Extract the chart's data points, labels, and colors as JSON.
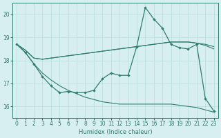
{
  "x": [
    0,
    1,
    2,
    3,
    4,
    5,
    6,
    7,
    8,
    9,
    10,
    11,
    12,
    13,
    14,
    15,
    16,
    17,
    18,
    19,
    20,
    21,
    22,
    23
  ],
  "y_jagged": [
    18.7,
    18.35,
    17.85,
    17.3,
    16.9,
    16.6,
    16.65,
    16.6,
    16.6,
    16.7,
    17.2,
    17.45,
    17.35,
    17.35,
    18.6,
    20.3,
    19.8,
    19.4,
    18.7,
    18.55,
    18.5,
    18.7,
    16.35,
    15.8
  ],
  "y_upper": [
    18.7,
    18.45,
    18.1,
    18.05,
    18.1,
    18.15,
    18.2,
    18.25,
    18.3,
    18.35,
    18.4,
    18.45,
    18.5,
    18.55,
    18.6,
    18.65,
    18.7,
    18.75,
    18.8,
    18.8,
    18.8,
    18.75,
    18.65,
    18.5
  ],
  "y_upper2": [
    18.7,
    18.45,
    18.1,
    18.05,
    18.1,
    18.15,
    18.2,
    18.25,
    18.3,
    18.35,
    18.4,
    18.45,
    18.5,
    18.55,
    18.6,
    18.65,
    18.7,
    18.75,
    18.8,
    18.8,
    18.8,
    18.75,
    18.7,
    18.6
  ],
  "y_lower": [
    18.7,
    18.35,
    17.85,
    17.45,
    17.15,
    16.9,
    16.7,
    16.55,
    16.4,
    16.3,
    16.2,
    16.15,
    16.1,
    16.1,
    16.1,
    16.1,
    16.1,
    16.1,
    16.1,
    16.05,
    16.0,
    15.95,
    15.85,
    15.75
  ],
  "color": "#2e7d6b",
  "bg_color": "#d7eff0",
  "grid_color": "#b8dde0",
  "xlabel": "Humidex (Indice chaleur)",
  "ylim": [
    15.5,
    20.5
  ],
  "xlim": [
    -0.5,
    23.5
  ],
  "yticks": [
    16,
    17,
    18,
    19,
    20
  ],
  "xticks": [
    0,
    1,
    2,
    3,
    4,
    5,
    6,
    7,
    8,
    9,
    10,
    11,
    12,
    13,
    14,
    15,
    16,
    17,
    18,
    19,
    20,
    21,
    22,
    23
  ],
  "xlabel_fontsize": 6,
  "tick_fontsize": 5.5
}
